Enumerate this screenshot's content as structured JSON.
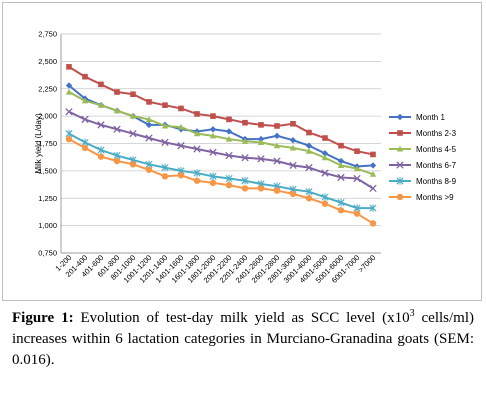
{
  "caption": {
    "label": "Figure 1:",
    "text_a": " Evolution of test-day milk yield as SCC level (x10",
    "superscript": "3",
    "text_b": " cells/ml) increases within 6 lactation categories in Murciano-Granadina goats (SEM: 0.016)."
  },
  "chart_data": {
    "type": "line",
    "title": "",
    "xlabel": "",
    "ylabel": "Milk yield (L/day)",
    "ylim": [
      0.75,
      2.75
    ],
    "yticks": [
      "0,750",
      "1,000",
      "1,250",
      "1,500",
      "1,750",
      "2,000",
      "2,250",
      "2,500",
      "2,750"
    ],
    "grid": "horizontal",
    "legend_position": "right",
    "categories": [
      "1-200",
      "201-400",
      "401-600",
      "601-800",
      "801-1000",
      "1001-1200",
      "1201-1400",
      "1401-1600",
      "1601-1800",
      "1801-2000",
      "2001-2200",
      "2201-2400",
      "2401-2600",
      "2601-2800",
      "2801-3000",
      "3001-4000",
      "4001-5000",
      "5001-6000",
      "6001-7000",
      ">7000"
    ],
    "series": [
      {
        "name": "Month 1",
        "color": "#4472c4",
        "marker": "diamond",
        "values": [
          2.28,
          2.16,
          2.1,
          2.05,
          2.0,
          1.92,
          1.92,
          1.88,
          1.86,
          1.88,
          1.86,
          1.79,
          1.79,
          1.82,
          1.78,
          1.73,
          1.66,
          1.59,
          1.54,
          1.55
        ]
      },
      {
        "name": "Months 2-3",
        "color": "#c0504d",
        "marker": "square",
        "values": [
          2.45,
          2.36,
          2.29,
          2.22,
          2.2,
          2.13,
          2.1,
          2.07,
          2.02,
          2.0,
          1.97,
          1.94,
          1.92,
          1.91,
          1.93,
          1.85,
          1.8,
          1.73,
          1.68,
          1.65
        ]
      },
      {
        "name": "Months 4-5",
        "color": "#9bbb59",
        "marker": "triangle",
        "values": [
          2.22,
          2.14,
          2.1,
          2.05,
          2.0,
          1.97,
          1.91,
          1.9,
          1.84,
          1.82,
          1.79,
          1.77,
          1.76,
          1.73,
          1.71,
          1.68,
          1.62,
          1.55,
          1.52,
          1.47
        ]
      },
      {
        "name": "Months 6-7",
        "color": "#8064a2",
        "marker": "x",
        "values": [
          2.04,
          1.97,
          1.92,
          1.88,
          1.84,
          1.8,
          1.76,
          1.73,
          1.7,
          1.67,
          1.64,
          1.62,
          1.61,
          1.59,
          1.55,
          1.53,
          1.48,
          1.44,
          1.43,
          1.34
        ]
      },
      {
        "name": "Months 8-9",
        "color": "#4bacc6",
        "marker": "star",
        "values": [
          1.84,
          1.76,
          1.69,
          1.64,
          1.6,
          1.56,
          1.53,
          1.5,
          1.48,
          1.45,
          1.43,
          1.41,
          1.38,
          1.36,
          1.33,
          1.31,
          1.26,
          1.21,
          1.16,
          1.16
        ]
      },
      {
        "name": "Months >9",
        "color": "#f79646",
        "marker": "circle",
        "values": [
          1.79,
          1.71,
          1.63,
          1.59,
          1.56,
          1.51,
          1.45,
          1.46,
          1.41,
          1.39,
          1.37,
          1.34,
          1.34,
          1.32,
          1.29,
          1.25,
          1.2,
          1.14,
          1.11,
          1.02
        ]
      }
    ]
  }
}
